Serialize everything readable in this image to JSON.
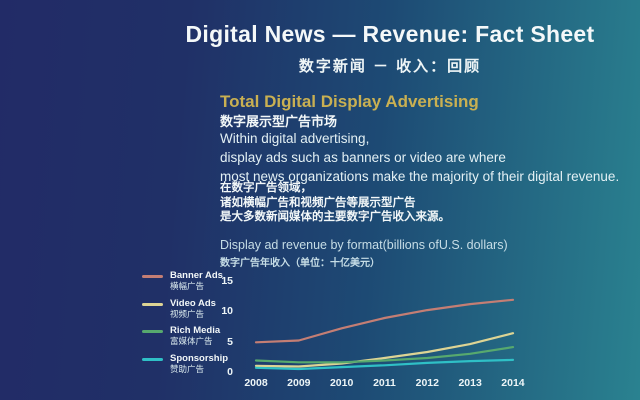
{
  "header": {
    "title": "Digital News — Revenue: Fact Sheet",
    "title_zh": "数字新闻 － 收入：回顾"
  },
  "section": {
    "title": "Total Digital Display Advertising",
    "title_zh": "数字展示型广告市场",
    "body_en": [
      "Within digital advertising,",
      "display ads such as banners or video are where",
      "most news organizations make the majority of their digital revenue."
    ],
    "body_zh": [
      "在数字广告领域，",
      "诸如横幅广告和视频广告等展示型广告",
      "是大多数新闻媒体的主要数字广告收入来源。"
    ]
  },
  "chart_data": {
    "type": "line",
    "title": "Display ad revenue by format(billions ofU.S. dollars)",
    "title_zh": "数字广告年收入（单位：十亿美元）",
    "x": [
      2008,
      2009,
      2010,
      2011,
      2012,
      2013,
      2014
    ],
    "series": [
      {
        "name": "Banner Ads",
        "name_zh": "横幅广告",
        "color": "#c47e74",
        "values": [
          4.9,
          5.2,
          7.2,
          8.9,
          10.2,
          11.2,
          11.9
        ]
      },
      {
        "name": "Video Ads",
        "name_zh": "视频广告",
        "color": "#ddd494",
        "values": [
          1.0,
          0.9,
          1.4,
          2.3,
          3.3,
          4.6,
          6.4
        ]
      },
      {
        "name": "Rich Media",
        "name_zh": "富媒体广告",
        "color": "#57a96e",
        "values": [
          1.9,
          1.6,
          1.6,
          1.9,
          2.3,
          3.0,
          4.1
        ]
      },
      {
        "name": "Sponsorship",
        "name_zh": "赞助广告",
        "color": "#2fc0c6",
        "values": [
          0.7,
          0.5,
          0.8,
          1.1,
          1.5,
          1.8,
          2.0
        ]
      }
    ],
    "yticks": [
      0,
      5,
      10,
      15
    ],
    "ylim": [
      0,
      15
    ],
    "grid": false,
    "legend_position": "left"
  },
  "colors": {
    "background_left": "#222b67",
    "background_right": "#2a8290",
    "section_title": "#c9b052",
    "text_primary": "#f2f7f8",
    "chart_caption": "#c6dde6"
  }
}
